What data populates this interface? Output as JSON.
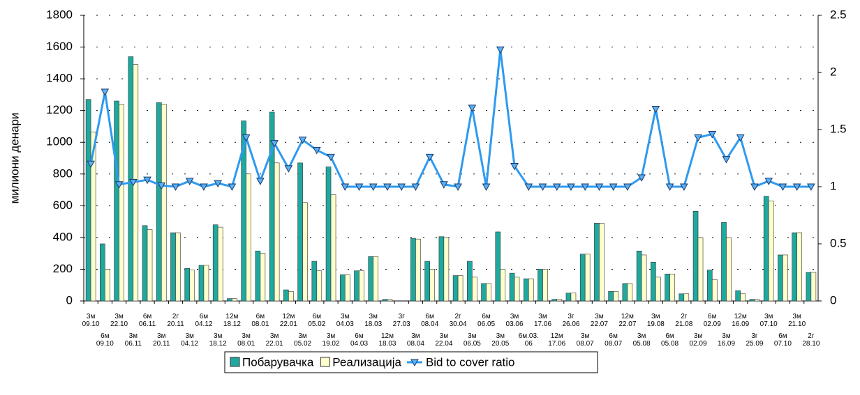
{
  "chart_data": {
    "type": "bar",
    "y_label": "милиони денари",
    "categories": [
      "3м 09.10",
      "6м 09.10",
      "3м 22.10",
      "3м 06.11",
      "6м 06.11",
      "3м 20.11",
      "2г 20.11",
      "3м 04.12",
      "6м 04.12",
      "3м 18.12",
      "12м 18.12",
      "3м 08.01",
      "6м 08.01",
      "3м 22.01",
      "12м 22.01",
      "3м 05.02",
      "6м 05.02",
      "3м 19.02",
      "3м 04.03",
      "6м 04.03",
      "3м 18.03",
      "12м 18.03",
      "3г 27.03",
      "3м 08.04",
      "6м 08.04",
      "3м 22.04",
      "2г 30.04",
      "3м 06.05",
      "6м 06.05",
      "3м 20.05",
      "3м 03.06",
      "6м.03. 06",
      "3м 17.06",
      "12м 17.06",
      "3г 26.06",
      "3м 08.07",
      "3м 22.07",
      "6м 08.07",
      "12м 22.07",
      "3м 05.08",
      "3м 19.08",
      "6м 05.08",
      "2г 21.08",
      "3м 02.09",
      "6м 02.09",
      "3м 16.09",
      "12м 16.09",
      "3г 25.09",
      "3м 07.10",
      "6м 07.10",
      "3м 21.10",
      "2г 28.10"
    ],
    "series": [
      {
        "name": "Побарувачка",
        "color": "#1fa89e",
        "type": "bar",
        "values": [
          1270,
          360,
          1260,
          1540,
          475,
          1250,
          430,
          205,
          225,
          480,
          15,
          1135,
          315,
          1190,
          70,
          870,
          250,
          845,
          165,
          190,
          280,
          10,
          0,
          395,
          250,
          405,
          160,
          250,
          110,
          435,
          175,
          140,
          200,
          10,
          50,
          295,
          490,
          60,
          110,
          315,
          245,
          170,
          45,
          565,
          195,
          495,
          65,
          10,
          660,
          290,
          430,
          180
        ]
      },
      {
        "name": "Реализација",
        "color": "#ffffcc",
        "type": "bar",
        "values": [
          1065,
          200,
          1240,
          1490,
          450,
          1240,
          430,
          195,
          225,
          465,
          15,
          800,
          300,
          870,
          60,
          620,
          190,
          670,
          165,
          190,
          280,
          10,
          0,
          390,
          200,
          400,
          160,
          150,
          110,
          200,
          150,
          140,
          200,
          10,
          50,
          295,
          490,
          60,
          110,
          290,
          150,
          170,
          45,
          400,
          135,
          400,
          45,
          10,
          630,
          290,
          430,
          180
        ]
      },
      {
        "name": "Bid to cover ratio",
        "color": "#2e9af0",
        "type": "line",
        "axis": "y2",
        "values": [
          1.2,
          1.83,
          1.02,
          1.04,
          1.06,
          1.01,
          1.0,
          1.05,
          1.0,
          1.03,
          1.0,
          1.43,
          1.05,
          1.38,
          1.16,
          1.41,
          1.32,
          1.26,
          1.0,
          1.0,
          1.0,
          1.0,
          1.0,
          1.0,
          1.26,
          1.02,
          1.0,
          1.69,
          1.0,
          2.2,
          1.18,
          1.0,
          1.0,
          1.0,
          1.0,
          1.0,
          1.0,
          1.0,
          1.0,
          1.08,
          1.68,
          1.0,
          1.0,
          1.43,
          1.46,
          1.24,
          1.43,
          1.0,
          1.05,
          1.0,
          1.0,
          1.0
        ]
      }
    ],
    "ylim": [
      0,
      1800
    ],
    "yticks": [
      0,
      200,
      400,
      600,
      800,
      1000,
      1200,
      1400,
      1600,
      1800
    ],
    "y2lim": [
      0,
      2.5
    ],
    "y2ticks": [
      0,
      0.5,
      1,
      1.5,
      2,
      2.5
    ],
    "grid": true,
    "legend": "bottom"
  }
}
